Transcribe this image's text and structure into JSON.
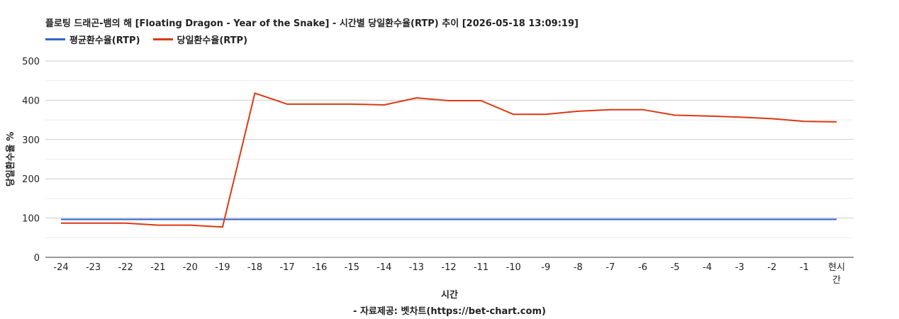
{
  "chart_data": {
    "type": "line",
    "title": "플로팅 드래곤-뱀의 해 [Floating Dragon - Year of the Snake] - 시간별 당일환수율(RTP) 추이 [2026-05-18 13:09:19]",
    "xlabel": "시간",
    "ylabel": "당일환수율 %",
    "source": "- 자료제공: 벳차트(https://bet-chart.com)",
    "categories": [
      "-24",
      "-23",
      "-22",
      "-21",
      "-20",
      "-19",
      "-18",
      "-17",
      "-16",
      "-15",
      "-14",
      "-13",
      "-12",
      "-11",
      "-10",
      "-9",
      "-8",
      "-7",
      "-6",
      "-5",
      "-4",
      "-3",
      "-2",
      "-1",
      "현시간"
    ],
    "category_lines": [
      [
        "-24"
      ],
      [
        "-23"
      ],
      [
        "-22"
      ],
      [
        "-21"
      ],
      [
        "-20"
      ],
      [
        "-19"
      ],
      [
        "-18"
      ],
      [
        "-17"
      ],
      [
        "-16"
      ],
      [
        "-15"
      ],
      [
        "-14"
      ],
      [
        "-13"
      ],
      [
        "-12"
      ],
      [
        "-11"
      ],
      [
        "-10"
      ],
      [
        "-9"
      ],
      [
        "-8"
      ],
      [
        "-7"
      ],
      [
        "-6"
      ],
      [
        "-5"
      ],
      [
        "-4"
      ],
      [
        "-3"
      ],
      [
        "-2"
      ],
      [
        "-1"
      ],
      [
        "현시",
        "간"
      ]
    ],
    "ylim": [
      0,
      500
    ],
    "yticks": [
      0,
      100,
      200,
      300,
      400,
      500
    ],
    "grid": true,
    "legend_position": "top-left",
    "series": [
      {
        "name": "평균환수율(RTP)",
        "color": "#3366cc",
        "values": [
          96.5,
          96.5,
          96.5,
          96.5,
          96.5,
          96.5,
          96.5,
          96.5,
          96.5,
          96.5,
          96.5,
          96.5,
          96.5,
          96.5,
          96.5,
          96.5,
          96.5,
          96.5,
          96.5,
          96.5,
          96.5,
          96.5,
          96.5,
          96.5,
          96.5
        ]
      },
      {
        "name": "당일환수율(RTP)",
        "color": "#dc3912",
        "values": [
          87,
          87,
          87,
          82,
          82,
          77,
          418,
          390,
          390,
          390,
          388,
          406,
          399,
          399,
          364,
          364,
          372,
          376,
          376,
          362,
          360,
          357,
          353,
          346,
          345
        ]
      }
    ]
  }
}
